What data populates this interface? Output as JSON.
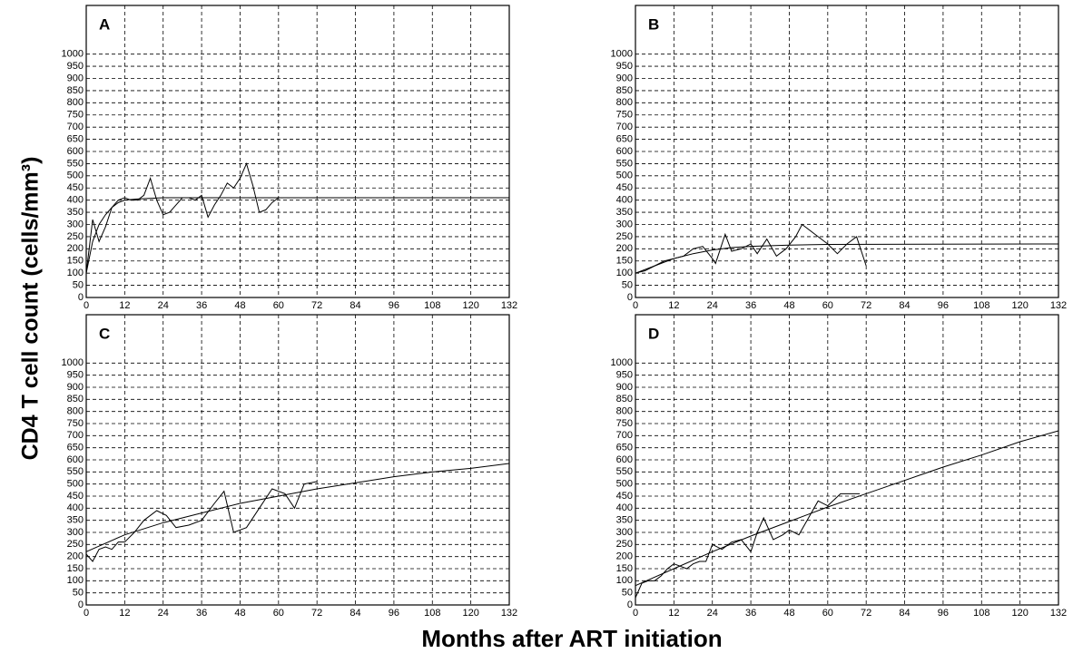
{
  "y_label": "CD4 T cell count (cells/mm³)",
  "x_label": "Months after ART initiation",
  "chart_data": [
    {
      "type": "line",
      "title": "A",
      "xlim": [
        0,
        132
      ],
      "xticks": [
        0,
        12,
        24,
        36,
        48,
        60,
        72,
        84,
        96,
        108,
        120,
        132
      ],
      "ylim": [
        0,
        1200
      ],
      "yticks": [
        0,
        50,
        100,
        150,
        200,
        250,
        300,
        350,
        400,
        450,
        500,
        550,
        600,
        650,
        700,
        750,
        800,
        850,
        900,
        950,
        1000
      ],
      "grid": true,
      "series": [
        {
          "color": "#000000",
          "x": [
            0,
            2,
            4,
            6,
            8,
            10,
            12,
            14,
            16,
            18,
            20,
            22,
            24,
            26,
            28,
            30,
            32,
            34,
            36,
            38,
            40,
            42,
            44,
            46,
            48,
            50,
            52,
            54,
            56,
            58,
            60
          ],
          "values": [
            100,
            320,
            230,
            290,
            370,
            400,
            410,
            400,
            400,
            420,
            490,
            400,
            340,
            350,
            380,
            410,
            410,
            400,
            420,
            330,
            380,
            420,
            470,
            450,
            490,
            550,
            460,
            350,
            360,
            390,
            410
          ]
        },
        {
          "color": "#000000",
          "x": [
            0,
            2,
            4,
            6,
            8,
            10,
            12,
            16,
            24,
            132
          ],
          "values": [
            100,
            230,
            300,
            340,
            370,
            390,
            400,
            405,
            410,
            410
          ]
        }
      ]
    },
    {
      "type": "line",
      "title": "B",
      "xlim": [
        0,
        132
      ],
      "xticks": [
        0,
        12,
        24,
        36,
        48,
        60,
        72,
        84,
        96,
        108,
        120,
        132
      ],
      "ylim": [
        0,
        1200
      ],
      "yticks": [
        0,
        50,
        100,
        150,
        200,
        250,
        300,
        350,
        400,
        450,
        500,
        550,
        600,
        650,
        700,
        750,
        800,
        850,
        900,
        950,
        1000
      ],
      "grid": true,
      "series": [
        {
          "color": "#000000",
          "x": [
            0,
            3,
            6,
            9,
            12,
            15,
            18,
            21,
            24,
            25,
            28,
            30,
            33,
            36,
            38,
            41,
            44,
            47,
            50,
            52,
            56,
            60,
            63,
            66,
            69,
            72
          ],
          "values": [
            100,
            110,
            130,
            150,
            160,
            170,
            200,
            210,
            160,
            140,
            260,
            190,
            200,
            220,
            180,
            240,
            170,
            200,
            250,
            300,
            260,
            220,
            180,
            220,
            250,
            130
          ]
        },
        {
          "color": "#000000",
          "x": [
            0,
            6,
            12,
            18,
            24,
            30,
            36,
            48,
            60,
            132
          ],
          "values": [
            100,
            130,
            160,
            180,
            195,
            205,
            210,
            215,
            218,
            220
          ]
        }
      ]
    },
    {
      "type": "line",
      "title": "C",
      "xlim": [
        0,
        132
      ],
      "xticks": [
        0,
        12,
        24,
        36,
        48,
        60,
        72,
        84,
        96,
        108,
        120,
        132
      ],
      "ylim": [
        0,
        1200
      ],
      "yticks": [
        0,
        50,
        100,
        150,
        200,
        250,
        300,
        350,
        400,
        450,
        500,
        550,
        600,
        650,
        700,
        750,
        800,
        850,
        900,
        950,
        1000
      ],
      "grid": true,
      "series": [
        {
          "color": "#000000",
          "x": [
            0,
            2,
            4,
            6,
            8,
            10,
            12,
            15,
            18,
            22,
            25,
            28,
            32,
            36,
            40,
            43,
            46,
            50,
            54,
            58,
            62,
            65,
            68,
            72
          ],
          "values": [
            210,
            180,
            230,
            240,
            230,
            260,
            260,
            300,
            350,
            390,
            370,
            320,
            330,
            350,
            420,
            470,
            300,
            320,
            400,
            480,
            460,
            400,
            500,
            510
          ]
        },
        {
          "color": "#000000",
          "x": [
            0,
            12,
            24,
            36,
            48,
            60,
            72,
            84,
            96,
            108,
            120,
            132
          ],
          "values": [
            220,
            290,
            340,
            380,
            420,
            450,
            480,
            505,
            530,
            550,
            565,
            585
          ]
        }
      ]
    },
    {
      "type": "line",
      "title": "D",
      "xlim": [
        0,
        132
      ],
      "xticks": [
        0,
        12,
        24,
        36,
        48,
        60,
        72,
        84,
        96,
        108,
        120,
        132
      ],
      "ylim": [
        0,
        1200
      ],
      "yticks": [
        0,
        50,
        100,
        150,
        200,
        250,
        300,
        350,
        400,
        450,
        500,
        550,
        600,
        650,
        700,
        750,
        800,
        850,
        900,
        950,
        1000
      ],
      "grid": true,
      "series": [
        {
          "color": "#000000",
          "x": [
            0,
            2,
            4,
            6,
            8,
            10,
            12,
            14,
            16,
            18,
            20,
            22,
            24,
            27,
            30,
            33,
            36,
            38,
            40,
            43,
            46,
            48,
            51,
            54,
            57,
            60,
            64,
            70
          ],
          "values": [
            30,
            90,
            100,
            100,
            120,
            150,
            170,
            160,
            150,
            170,
            180,
            180,
            250,
            230,
            260,
            270,
            220,
            300,
            360,
            270,
            290,
            310,
            290,
            360,
            430,
            410,
            460,
            460
          ]
        },
        {
          "color": "#000000",
          "x": [
            0,
            12,
            24,
            36,
            48,
            60,
            72,
            84,
            96,
            108,
            120,
            132
          ],
          "values": [
            80,
            150,
            220,
            285,
            345,
            405,
            460,
            515,
            570,
            620,
            675,
            720
          ]
        }
      ]
    }
  ]
}
